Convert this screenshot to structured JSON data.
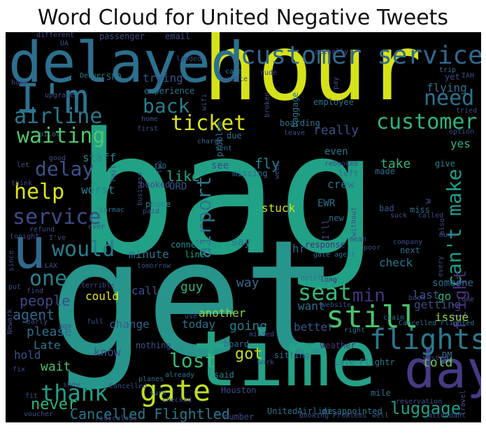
{
  "figure": {
    "title": "Word Cloud for United Negative Tweets",
    "background_color": "#000000"
  },
  "words": [
    {
      "text": "bag",
      "color": "#21a186"
    },
    {
      "text": "get",
      "color": "#27958b"
    },
    {
      "text": "hour",
      "color": "#d5e21a"
    },
    {
      "text": "time",
      "color": "#24a187"
    },
    {
      "text": "delayed",
      "color": "#2c6f8e"
    },
    {
      "text": "day",
      "color": "#443b84"
    },
    {
      "text": "customer service",
      "color": "#31688e"
    },
    {
      "text": "I'm",
      "color": "#2c728e"
    },
    {
      "text": "flights",
      "color": "#2a788e"
    },
    {
      "text": "still",
      "color": "#4ac16d"
    },
    {
      "text": "gate",
      "color": "#bddf26"
    },
    {
      "text": "u",
      "color": "#31688e"
    },
    {
      "text": "airline",
      "color": "#29798e"
    },
    {
      "text": "customer",
      "color": "#2fb47c"
    },
    {
      "text": "need",
      "color": "#2c738e"
    },
    {
      "text": "waiting",
      "color": "#52c569"
    },
    {
      "text": "delay",
      "color": "#3b528b"
    },
    {
      "text": "help",
      "color": "#dde318"
    },
    {
      "text": "ticket",
      "color": "#d8e219"
    },
    {
      "text": "back",
      "color": "#287d8e"
    },
    {
      "text": "would",
      "color": "#297b8e"
    },
    {
      "text": "seat",
      "color": "#35b779"
    },
    {
      "text": "service",
      "color": "#3e4a89"
    },
    {
      "text": "thank",
      "color": "#1fa088"
    },
    {
      "text": "airport",
      "color": "#2a788e"
    },
    {
      "text": "can't make",
      "color": "#1f9e89"
    },
    {
      "text": "lost",
      "color": "#37b878"
    },
    {
      "text": "one",
      "color": "#26828e"
    },
    {
      "text": "luggage",
      "color": "#1f9e89"
    },
    {
      "text": "Cancelled Flightled",
      "color": "#2a788e"
    },
    {
      "text": "never",
      "color": "#31b57b"
    },
    {
      "text": "min",
      "color": "#46327e"
    },
    {
      "text": "flight",
      "color": "#472d7b"
    },
    {
      "text": "got",
      "color": "#c2df23"
    },
    {
      "text": "like",
      "color": "#22a785"
    },
    {
      "text": "really",
      "color": "#3e4c8a"
    },
    {
      "text": "people",
      "color": "#3f4788"
    },
    {
      "text": "told",
      "color": "#6ccd5a"
    },
    {
      "text": "take",
      "color": "#32b67a"
    },
    {
      "text": "fly",
      "color": "#25838e"
    },
    {
      "text": "staff",
      "color": "#25848e"
    },
    {
      "text": "worst",
      "color": "#25848e"
    },
    {
      "text": "agent",
      "color": "#31678e"
    },
    {
      "text": "please",
      "color": "#2d708e"
    },
    {
      "text": "minute",
      "color": "#2b748e"
    },
    {
      "text": "check",
      "color": "#2a778e"
    },
    {
      "text": "going",
      "color": "#277f8e"
    },
    {
      "text": "another",
      "color": "#90d743"
    },
    {
      "text": "change",
      "color": "#355f8d"
    },
    {
      "text": "call",
      "color": "#3c508b"
    },
    {
      "text": "guy",
      "color": "#2db27d"
    },
    {
      "text": "way",
      "color": "#31678e"
    },
    {
      "text": "crew",
      "color": "#2c728e"
    },
    {
      "text": "say",
      "color": "#2d718e"
    },
    {
      "text": "trying",
      "color": "#3a538b"
    },
    {
      "text": "flying",
      "color": "#2c738e"
    },
    {
      "text": "yes",
      "color": "#2db27d"
    },
    {
      "text": "stuck",
      "color": "#d2e21b"
    },
    {
      "text": "issue",
      "color": "#95d840"
    },
    {
      "text": "wait",
      "color": "#4ac16d"
    },
    {
      "text": "hold",
      "color": "#3b528b"
    },
    {
      "text": "Late",
      "color": "#287c8e"
    },
    {
      "text": "know",
      "color": "#3e4c8a"
    },
    {
      "text": "could",
      "color": "#e7e419"
    },
    {
      "text": "today",
      "color": "#2c738e"
    },
    {
      "text": "want",
      "color": "#2c728e"
    },
    {
      "text": "better",
      "color": "#39558c"
    },
    {
      "text": "go",
      "color": "#2db27d"
    },
    {
      "text": "getting",
      "color": "#3e4a89"
    },
    {
      "text": "last",
      "color": "#39568c"
    },
    {
      "text": "someone",
      "color": "#2d708e"
    },
    {
      "text": "even",
      "color": "#2a778e"
    },
    {
      "text": "left",
      "color": "#2e6d8e"
    },
    {
      "text": "give",
      "color": "#26818e"
    },
    {
      "text": "made",
      "color": "#2f6c8e"
    },
    {
      "text": "connection",
      "color": "#21918c"
    },
    {
      "text": "line",
      "color": "#20a386"
    },
    {
      "text": "phone",
      "color": "#26828e"
    },
    {
      "text": "hr",
      "color": "#32658e"
    },
    {
      "text": "see",
      "color": "#3e4989"
    },
    {
      "text": "missing",
      "color": "#2c738e"
    },
    {
      "text": "ORD",
      "color": "#3a538b"
    },
    {
      "text": "EWR",
      "color": "#2c738e"
    },
    {
      "text": "bad",
      "color": "#3b528b"
    },
    {
      "text": "miss",
      "color": "#2d708e"
    },
    {
      "text": "new",
      "color": "#2e6e8e"
    },
    {
      "text": "next",
      "color": "#2d708e"
    },
    {
      "text": "Late Flightr",
      "color": "#2a788e"
    },
    {
      "text": "UnitedAirline",
      "color": "#2c728e"
    },
    {
      "text": "disappointed",
      "color": "#2a778e"
    },
    {
      "text": "said",
      "color": "#26828e"
    },
    {
      "text": "Houston",
      "color": "#3e4c8a"
    },
    {
      "text": "number",
      "color": "#3e4a89"
    },
    {
      "text": "sitting",
      "color": "#2d708e"
    },
    {
      "text": "board",
      "color": "#2e6e8e"
    },
    {
      "text": "mile",
      "color": "#2d708e"
    },
    {
      "text": "nothing",
      "color": "#3b528b"
    },
    {
      "text": "already",
      "color": "#2d718e"
    },
    {
      "text": "sure",
      "color": "#2e6d8e"
    },
    {
      "text": "planes",
      "color": "#2e6d8e"
    },
    {
      "text": "passenger",
      "color": "#3e4c8a"
    },
    {
      "text": "email",
      "color": "#3e4a89"
    },
    {
      "text": "experience",
      "color": "#2b758e"
    },
    {
      "text": "Denver",
      "color": "#26828e"
    },
    {
      "text": "SFO",
      "color": "#2c728e"
    },
    {
      "text": "UA",
      "color": "#3a538b"
    },
    {
      "text": "care",
      "color": "#2d718e"
    },
    {
      "text": "update",
      "color": "#3e4c8a"
    },
    {
      "text": "rude",
      "color": "#3e4989"
    },
    {
      "text": "baggage",
      "color": "#2c728e"
    },
    {
      "text": "problem",
      "color": "#2c728e"
    },
    {
      "text": "employee",
      "color": "#2d708e"
    },
    {
      "text": "boarding",
      "color": "#2c738e"
    },
    {
      "text": "due",
      "color": "#2c738e"
    },
    {
      "text": "sent",
      "color": "#2d708e"
    },
    {
      "text": "charge",
      "color": "#2e6d8e"
    },
    {
      "text": "pilot",
      "color": "#2e6d8e"
    },
    {
      "text": "good",
      "color": "#3e4a89"
    },
    {
      "text": "let",
      "color": "#3b528b"
    },
    {
      "text": "IAD",
      "color": "#25838e"
    },
    {
      "text": "booked",
      "color": "#3e4a89"
    },
    {
      "text": "refund",
      "color": "#3e4c8a"
    },
    {
      "text": "ever",
      "color": "#3e4c8a"
    },
    {
      "text": "I've",
      "color": "#3e4a89"
    },
    {
      "text": "tarmac",
      "color": "#2c728e"
    },
    {
      "text": "LAX",
      "color": "#3e4c8a"
    },
    {
      "text": "response",
      "color": "#472d7b"
    },
    {
      "text": "gate agent",
      "color": "#2c738e"
    },
    {
      "text": "hotel",
      "color": "#2d708e"
    },
    {
      "text": "long",
      "color": "#472d7b"
    },
    {
      "text": "right",
      "color": "#2d708e"
    },
    {
      "text": "weather",
      "color": "#46327e"
    },
    {
      "text": "claim",
      "color": "#2e6e8e"
    },
    {
      "text": "Cancelled Flighted",
      "color": "#2c728e"
    },
    {
      "text": "DM",
      "color": "#2d708e"
    },
    {
      "text": "reservation",
      "color": "#3e4c8a"
    },
    {
      "text": "attendant",
      "color": "#3e4a89"
    },
    {
      "text": "tried",
      "color": "#3e4c8a"
    },
    {
      "text": "trip",
      "color": "#2d708e"
    },
    {
      "text": "IAH",
      "color": "#3e4a89"
    },
    {
      "text": "yet",
      "color": "#3e4c8a"
    },
    {
      "text": "actually",
      "color": "#3e4c8a"
    },
    {
      "text": "landed",
      "color": "#3e4c8a"
    },
    {
      "text": "different",
      "color": "#3e4c8a"
    },
    {
      "text": "hope",
      "color": "#3e4c8a"
    },
    {
      "text": "upgrade",
      "color": "#3e4c8a"
    },
    {
      "text": "first",
      "color": "#3e4c8a"
    },
    {
      "text": "home",
      "color": "#3e4c8a"
    },
    {
      "text": "wifi",
      "color": "#3e4c8a"
    },
    {
      "text": "broken",
      "color": "#3e4c8a"
    },
    {
      "text": "leave",
      "color": "#3e4c8a"
    },
    {
      "text": "option",
      "color": "#3e4c8a"
    },
    {
      "text": "week",
      "color": "#3e4c8a"
    },
    {
      "text": "think",
      "color": "#3e4c8a"
    },
    {
      "text": "business",
      "color": "#3e4c8a"
    },
    {
      "text": "two",
      "color": "#3e4c8a"
    },
    {
      "text": "paid",
      "color": "#3e4c8a"
    },
    {
      "text": "tomorrow",
      "color": "#3e4c8a"
    },
    {
      "text": "tonight",
      "color": "#3e4c8a"
    },
    {
      "text": "since",
      "color": "#3e4c8a"
    },
    {
      "text": "put",
      "color": "#3e4c8a"
    },
    {
      "text": "find",
      "color": "#3e4c8a"
    },
    {
      "text": "terrible",
      "color": "#3e4c8a"
    },
    {
      "text": "Newark",
      "color": "#3e4c8a"
    },
    {
      "text": "early",
      "color": "#3e4c8a"
    },
    {
      "text": "ago",
      "color": "#3e4c8a"
    },
    {
      "text": "full",
      "color": "#3e4c8a"
    },
    {
      "text": "use",
      "color": "#3e4c8a"
    },
    {
      "text": "website",
      "color": "#3e4c8a"
    },
    {
      "text": "fix",
      "color": "#3e4c8a"
    },
    {
      "text": "work",
      "color": "#3e4c8a"
    },
    {
      "text": "missed",
      "color": "#3e4c8a"
    },
    {
      "text": "show",
      "color": "#3e4c8a"
    },
    {
      "text": "fit",
      "color": "#3e4c8a"
    },
    {
      "text": "voucher",
      "color": "#3e4c8a"
    },
    {
      "text": "ridiculous",
      "color": "#3e4c8a"
    },
    {
      "text": "Cancelled",
      "color": "#3e4c8a"
    },
    {
      "text": "checked",
      "color": "#3e4c8a"
    },
    {
      "text": "Booking Problems",
      "color": "#3e4c8a"
    },
    {
      "text": "well",
      "color": "#3e4c8a"
    },
    {
      "text": "system",
      "color": "#3e4c8a"
    },
    {
      "text": "travel",
      "color": "#3e4c8a"
    },
    {
      "text": "company",
      "color": "#3e4c8a"
    },
    {
      "text": "poor",
      "color": "#3e4c8a"
    },
    {
      "text": "mean",
      "color": "#3e4c8a"
    },
    {
      "text": "without",
      "color": "#3e4c8a"
    },
    {
      "text": "suck",
      "color": "#3e4c8a"
    },
    {
      "text": "called",
      "color": "#3e4c8a"
    },
    {
      "text": "also",
      "color": "#3e4c8a"
    },
    {
      "text": "much",
      "color": "#3e4c8a"
    },
    {
      "text": "every",
      "color": "#3e4c8a"
    },
    {
      "text": "book",
      "color": "#3e4c8a"
    },
    {
      "text": "come",
      "color": "#3e4c8a"
    },
    {
      "text": "I'll",
      "color": "#3e4c8a"
    },
    {
      "text": "rebooked",
      "color": "#3e4c8a"
    },
    {
      "text": "Fail",
      "color": "#3e4c8a"
    },
    {
      "text": "pay",
      "color": "#3e4c8a"
    },
    {
      "text": "w",
      "color": "#3e4c8a"
    }
  ]
}
